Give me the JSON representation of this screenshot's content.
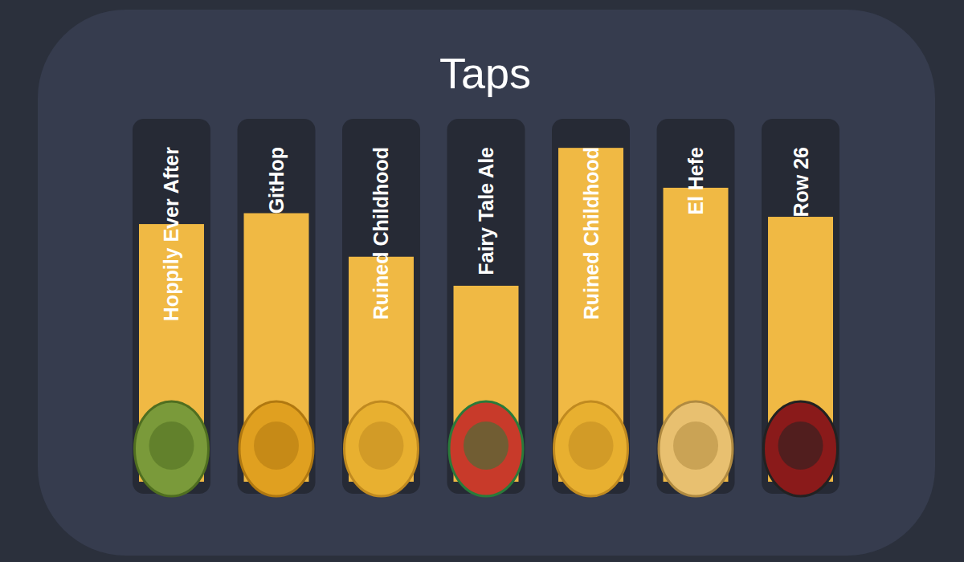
{
  "chart_data": {
    "type": "bar",
    "title": "Taps",
    "categories": [
      "Hoppily Ever After",
      "GitHop",
      "Ruined Childhood",
      "Fairy Tale Ale",
      "Ruined Childhood",
      "El Hefe",
      "Row 26"
    ],
    "values": [
      71,
      74,
      62,
      54,
      92,
      81,
      73
    ],
    "color": "#f0b944",
    "ylim": [
      0,
      100
    ],
    "tick_labels": false
  }
}
